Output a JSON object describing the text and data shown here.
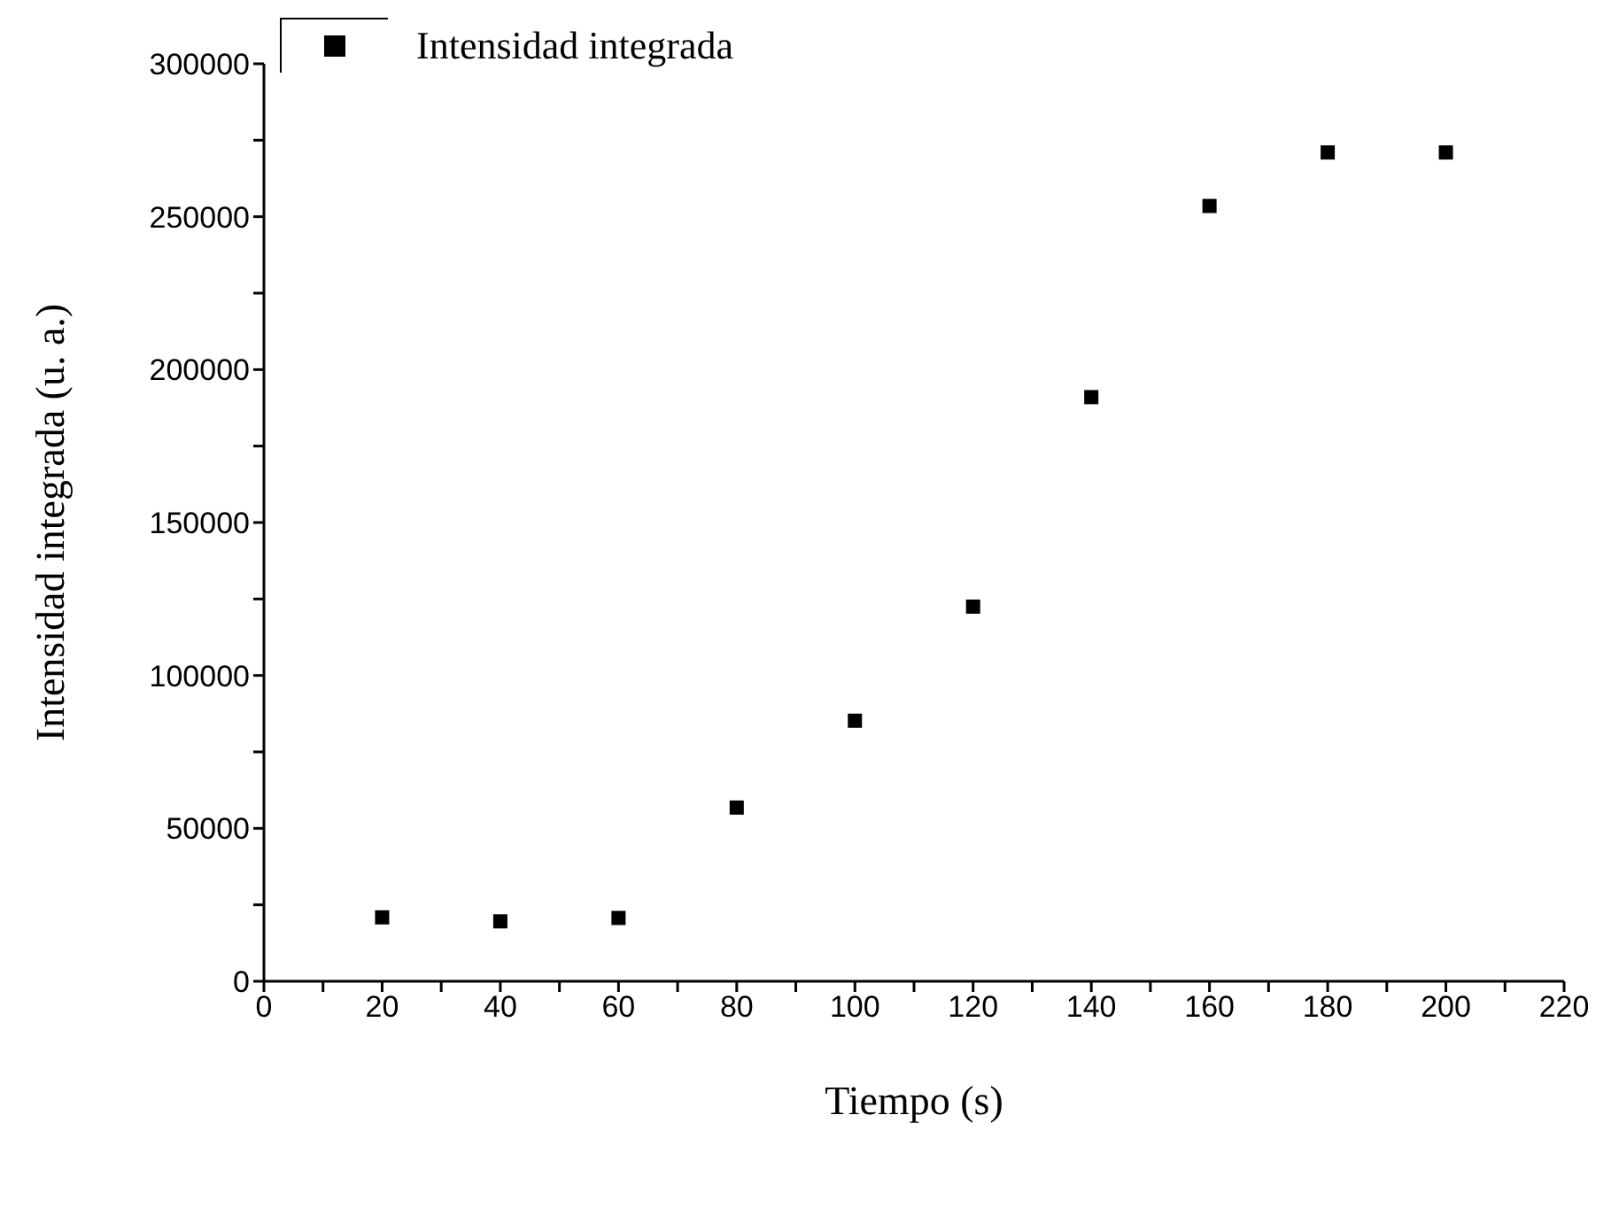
{
  "chart_data": {
    "type": "scatter",
    "xlabel": "Tiempo (s)",
    "ylabel": "Intensidad integrada (u. a.)",
    "x": [
      20,
      40,
      60,
      80,
      100,
      120,
      140,
      160,
      180,
      200
    ],
    "series": [
      {
        "name": "Intensidad integrada",
        "color": "#000000",
        "values": [
          20900,
          19600,
          20700,
          56800,
          85200,
          122500,
          191000,
          253500,
          271000,
          271000
        ]
      }
    ],
    "xlim": [
      0,
      220
    ],
    "xticks": [
      0,
      {
        "value": 10,
        "label": null
      },
      20,
      {
        "value": 30,
        "label": null
      },
      40,
      {
        "value": 50,
        "label": null
      },
      60,
      {
        "value": 70,
        "label": null
      },
      80,
      {
        "value": 90,
        "label": null
      },
      100,
      {
        "value": 110,
        "label": null
      },
      120,
      {
        "value": 130,
        "label": null
      },
      140,
      {
        "value": 150,
        "label": null
      },
      160,
      {
        "value": 170,
        "label": null
      },
      180,
      {
        "value": 190,
        "label": null
      },
      200,
      {
        "value": 210,
        "label": null
      },
      220
    ],
    "ylim": [
      0,
      300000
    ],
    "yticks": [
      0,
      {
        "value": 25000,
        "label": null
      },
      50000,
      {
        "value": 75000,
        "label": null
      },
      100000,
      {
        "value": 125000,
        "label": null
      },
      150000,
      {
        "value": 175000,
        "label": null
      },
      200000,
      {
        "value": 225000,
        "label": null
      },
      250000,
      {
        "value": 275000,
        "label": null
      },
      300000
    ],
    "marker": "square",
    "grid": false,
    "legend": "top left"
  }
}
